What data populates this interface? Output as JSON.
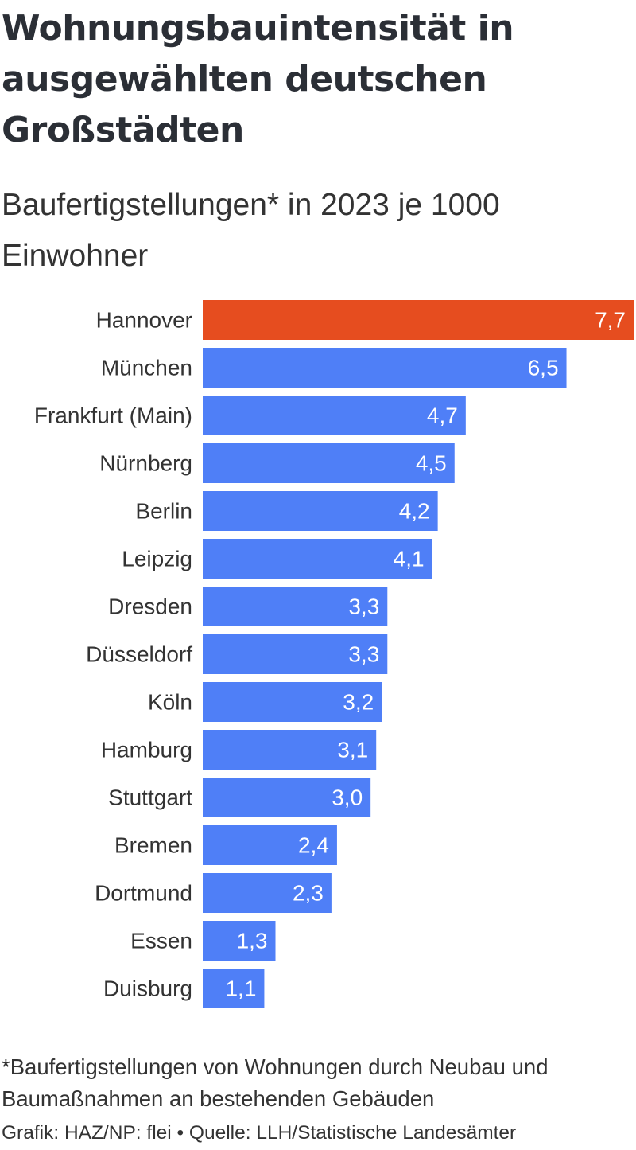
{
  "header": {
    "title": "Wohnungsbauintensität in ausgewählten deutschen Großstädten",
    "subtitle": "Baufertigstellungen* in 2023 je 1000 Einwohner"
  },
  "footer": {
    "footnote": "*Baufertigstellungen von Wohnungen durch Neubau und Baumaßnahmen an bestehenden Gebäuden",
    "credits": "Grafik: HAZ/NP: flei • Quelle: LLH/Statistische Landesämter"
  },
  "colors": {
    "highlight": "#e64d1f",
    "bar": "#4f7ff7"
  },
  "chart_data": {
    "type": "bar",
    "orientation": "horizontal",
    "title": "Wohnungsbauintensität in ausgewählten deutschen Großstädten",
    "subtitle": "Baufertigstellungen* in 2023 je 1000 Einwohner",
    "categories": [
      "Hannover",
      "München",
      "Frankfurt (Main)",
      "Nürnberg",
      "Berlin",
      "Leipzig",
      "Dresden",
      "Düsseldorf",
      "Köln",
      "Hamburg",
      "Stuttgart",
      "Bremen",
      "Dortmund",
      "Essen",
      "Duisburg"
    ],
    "values": [
      7.7,
      6.5,
      4.7,
      4.5,
      4.2,
      4.1,
      3.3,
      3.3,
      3.2,
      3.1,
      3.0,
      2.4,
      2.3,
      1.3,
      1.1
    ],
    "value_labels": [
      "7,7",
      "6,5",
      "4,7",
      "4,5",
      "4,2",
      "4,1",
      "3,3",
      "3,3",
      "3,2",
      "3,1",
      "3,0",
      "2,4",
      "2,3",
      "1,3",
      "1,1"
    ],
    "highlighted": [
      "Hannover"
    ],
    "xlim": [
      0,
      7.7
    ],
    "grid": false,
    "legend": "none",
    "xlabel": "",
    "ylabel": ""
  }
}
